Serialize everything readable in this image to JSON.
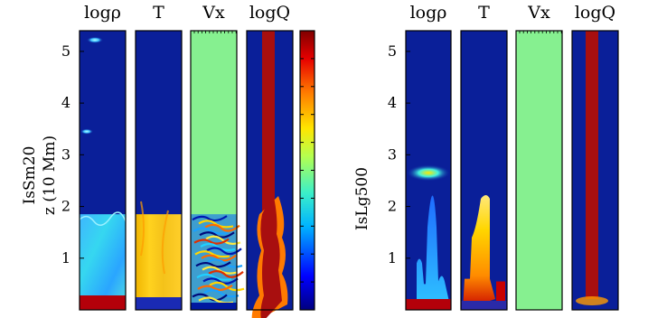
{
  "chart_data": [
    {
      "type": "heatmap",
      "row_label": "IsSm20",
      "ylabel": "z (10 Mm)",
      "ylim": [
        0,
        5.4
      ],
      "yticks": [
        1,
        2,
        3,
        4,
        5
      ],
      "grid": false,
      "colorbar": true,
      "colorbar_colors": [
        "#00007f",
        "#0000ff",
        "#00b4ff",
        "#3cf0c8",
        "#b4ff50",
        "#ffe600",
        "#ff7a00",
        "#e60000",
        "#800000"
      ],
      "panels": [
        {
          "label": "logρ"
        },
        {
          "label": "T"
        },
        {
          "label": "Vx"
        },
        {
          "label": "logQ"
        }
      ]
    },
    {
      "type": "heatmap",
      "row_label": "IsLg500",
      "ylim": [
        0,
        5.4
      ],
      "yticks": [
        1,
        2,
        3,
        4,
        5
      ],
      "grid": false,
      "panels": [
        {
          "label": "logρ"
        },
        {
          "label": "T"
        },
        {
          "label": "Vx"
        },
        {
          "label": "logQ"
        }
      ]
    }
  ]
}
